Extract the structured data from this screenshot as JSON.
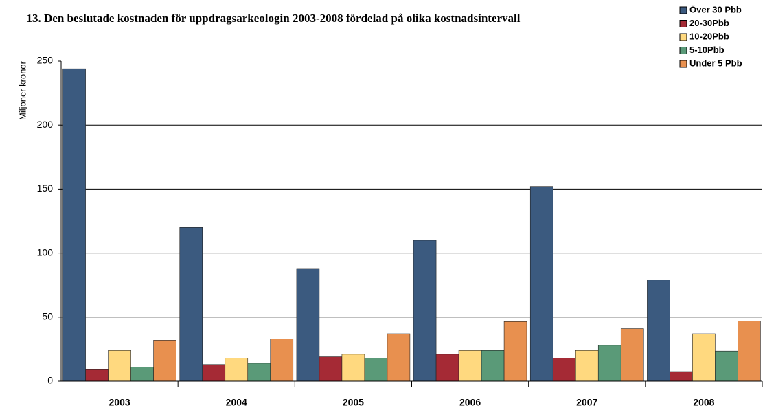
{
  "chart_data": {
    "type": "bar",
    "title": "13. Den beslutade kostnaden för uppdragsarkeologin 2003-2008 fördelad på olika kostnadsintervall",
    "y_label": "Miljoner kronor",
    "categories": [
      "2003",
      "2004",
      "2005",
      "2006",
      "2007",
      "2008"
    ],
    "series": [
      {
        "name": "Över 30 Pbb",
        "color": "#3b5a7f",
        "values": [
          244,
          120,
          88,
          110,
          152,
          79
        ]
      },
      {
        "name": "20-30Pbb",
        "color": "#a52a35",
        "values": [
          9,
          13,
          19,
          21,
          18,
          7.5
        ]
      },
      {
        "name": "10-20Pbb",
        "color": "#ffd97f",
        "values": [
          24,
          18,
          21,
          24,
          24,
          37
        ]
      },
      {
        "name": "5-10Pbb",
        "color": "#5a9a78",
        "values": [
          11,
          14,
          18,
          24,
          28,
          23.5
        ]
      },
      {
        "name": "Under 5 Pbb",
        "color": "#e8904f",
        "values": [
          32,
          33,
          37,
          46.5,
          41,
          47
        ]
      }
    ],
    "ylim": [
      0,
      250
    ],
    "yticks": [
      0,
      50,
      100,
      150,
      200,
      250
    ],
    "grid": true,
    "legend": "top-right"
  }
}
